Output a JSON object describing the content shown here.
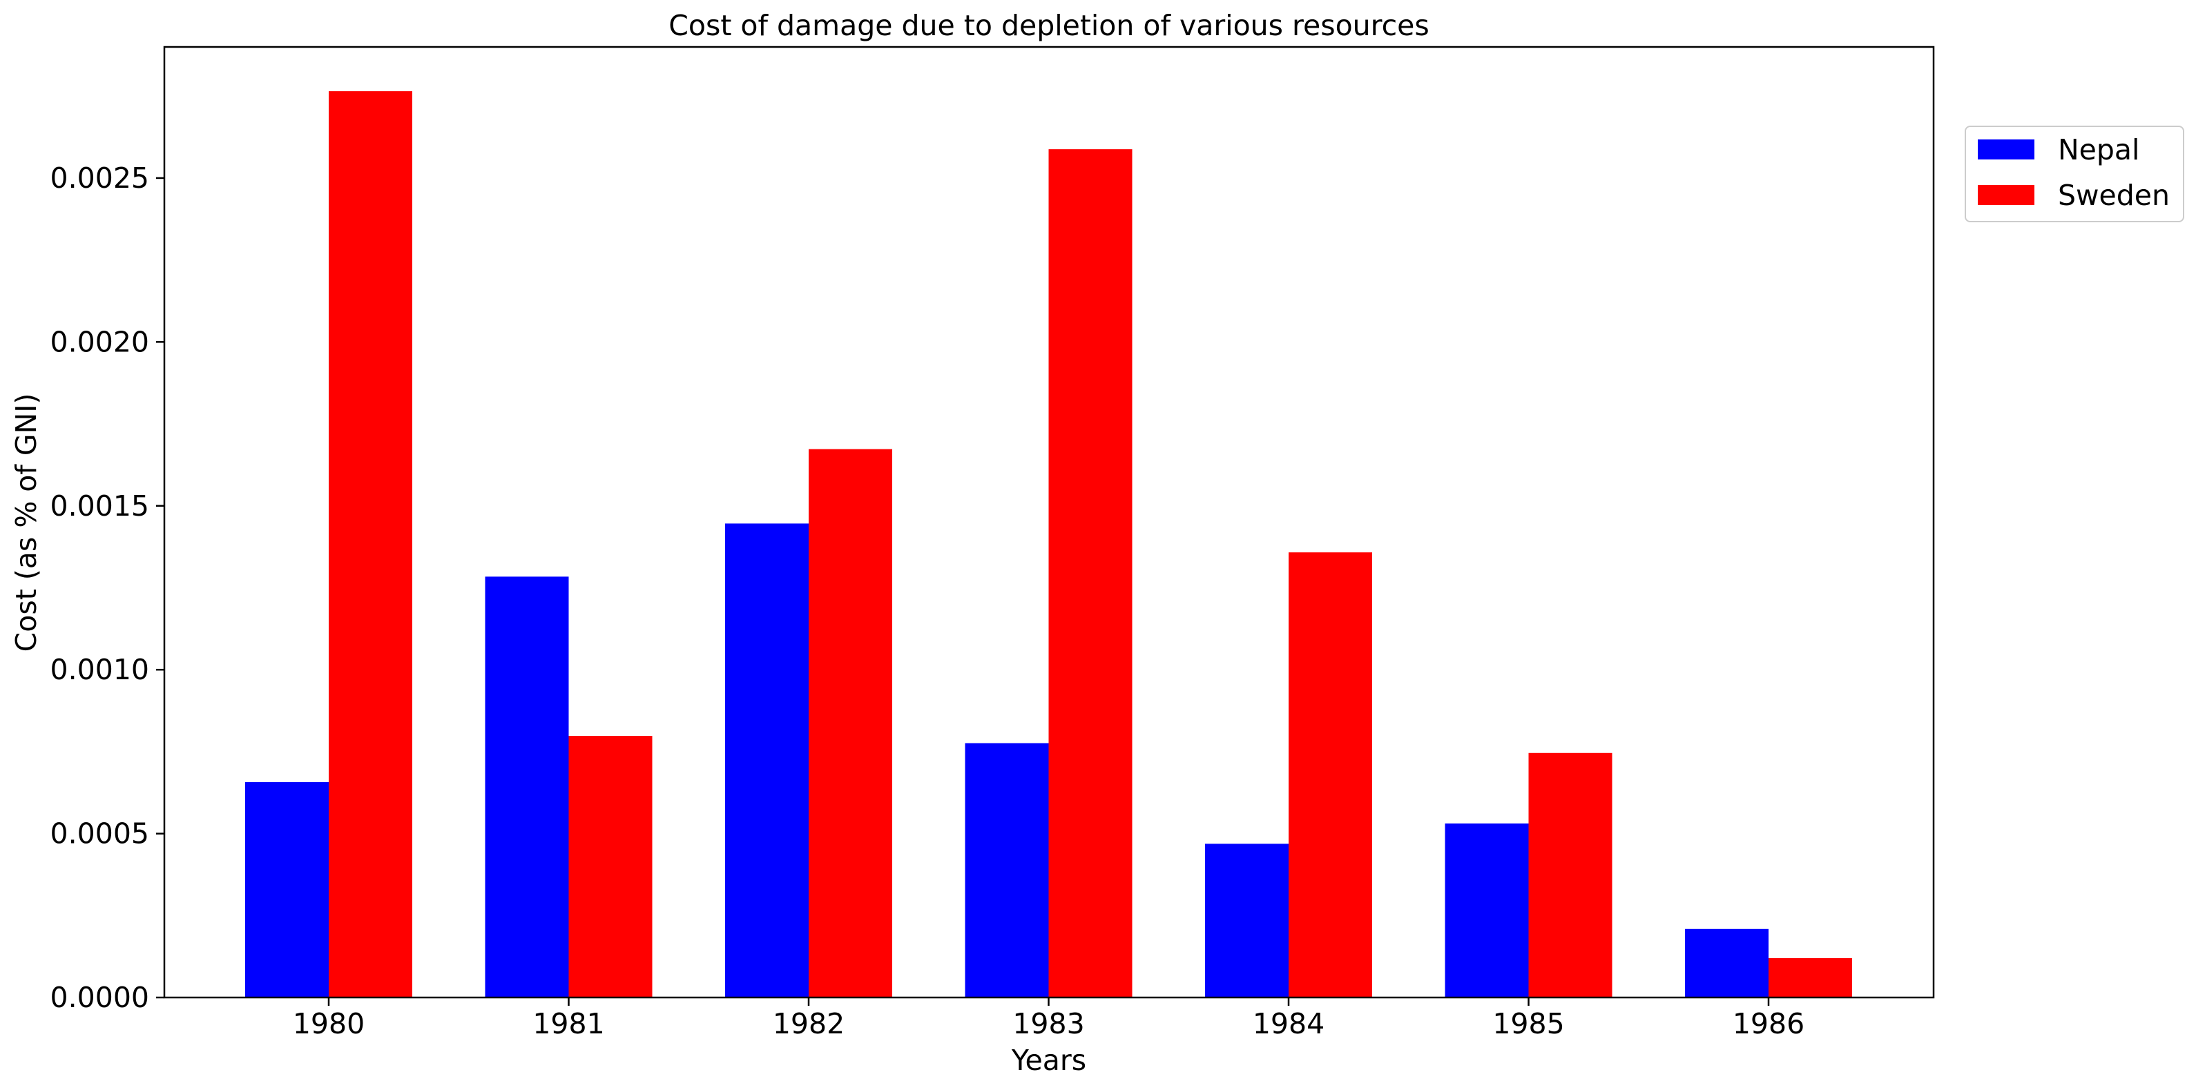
{
  "chart_data": {
    "type": "bar",
    "title": "Cost of damage due to depletion of various resources",
    "xlabel": "Years",
    "ylabel": "Cost (as % of GNI)",
    "categories": [
      "1980",
      "1981",
      "1982",
      "1983",
      "1984",
      "1985",
      "1986"
    ],
    "series": [
      {
        "name": "Nepal",
        "color": "#0000ff",
        "values": [
          0.000657,
          0.001284,
          0.001446,
          0.000776,
          0.000469,
          0.000531,
          0.000209
        ]
      },
      {
        "name": "Sweden",
        "color": "#ff0000",
        "values": [
          0.002765,
          0.000798,
          0.001673,
          0.002588,
          0.001358,
          0.000746,
          0.00012
        ]
      }
    ],
    "ylim": [
      0,
      0.0029
    ],
    "yticks": [
      "0.0000",
      "0.0005",
      "0.0010",
      "0.0015",
      "0.0020",
      "0.0025"
    ],
    "grid": false,
    "legend_position": "upper right, outside plot"
  }
}
